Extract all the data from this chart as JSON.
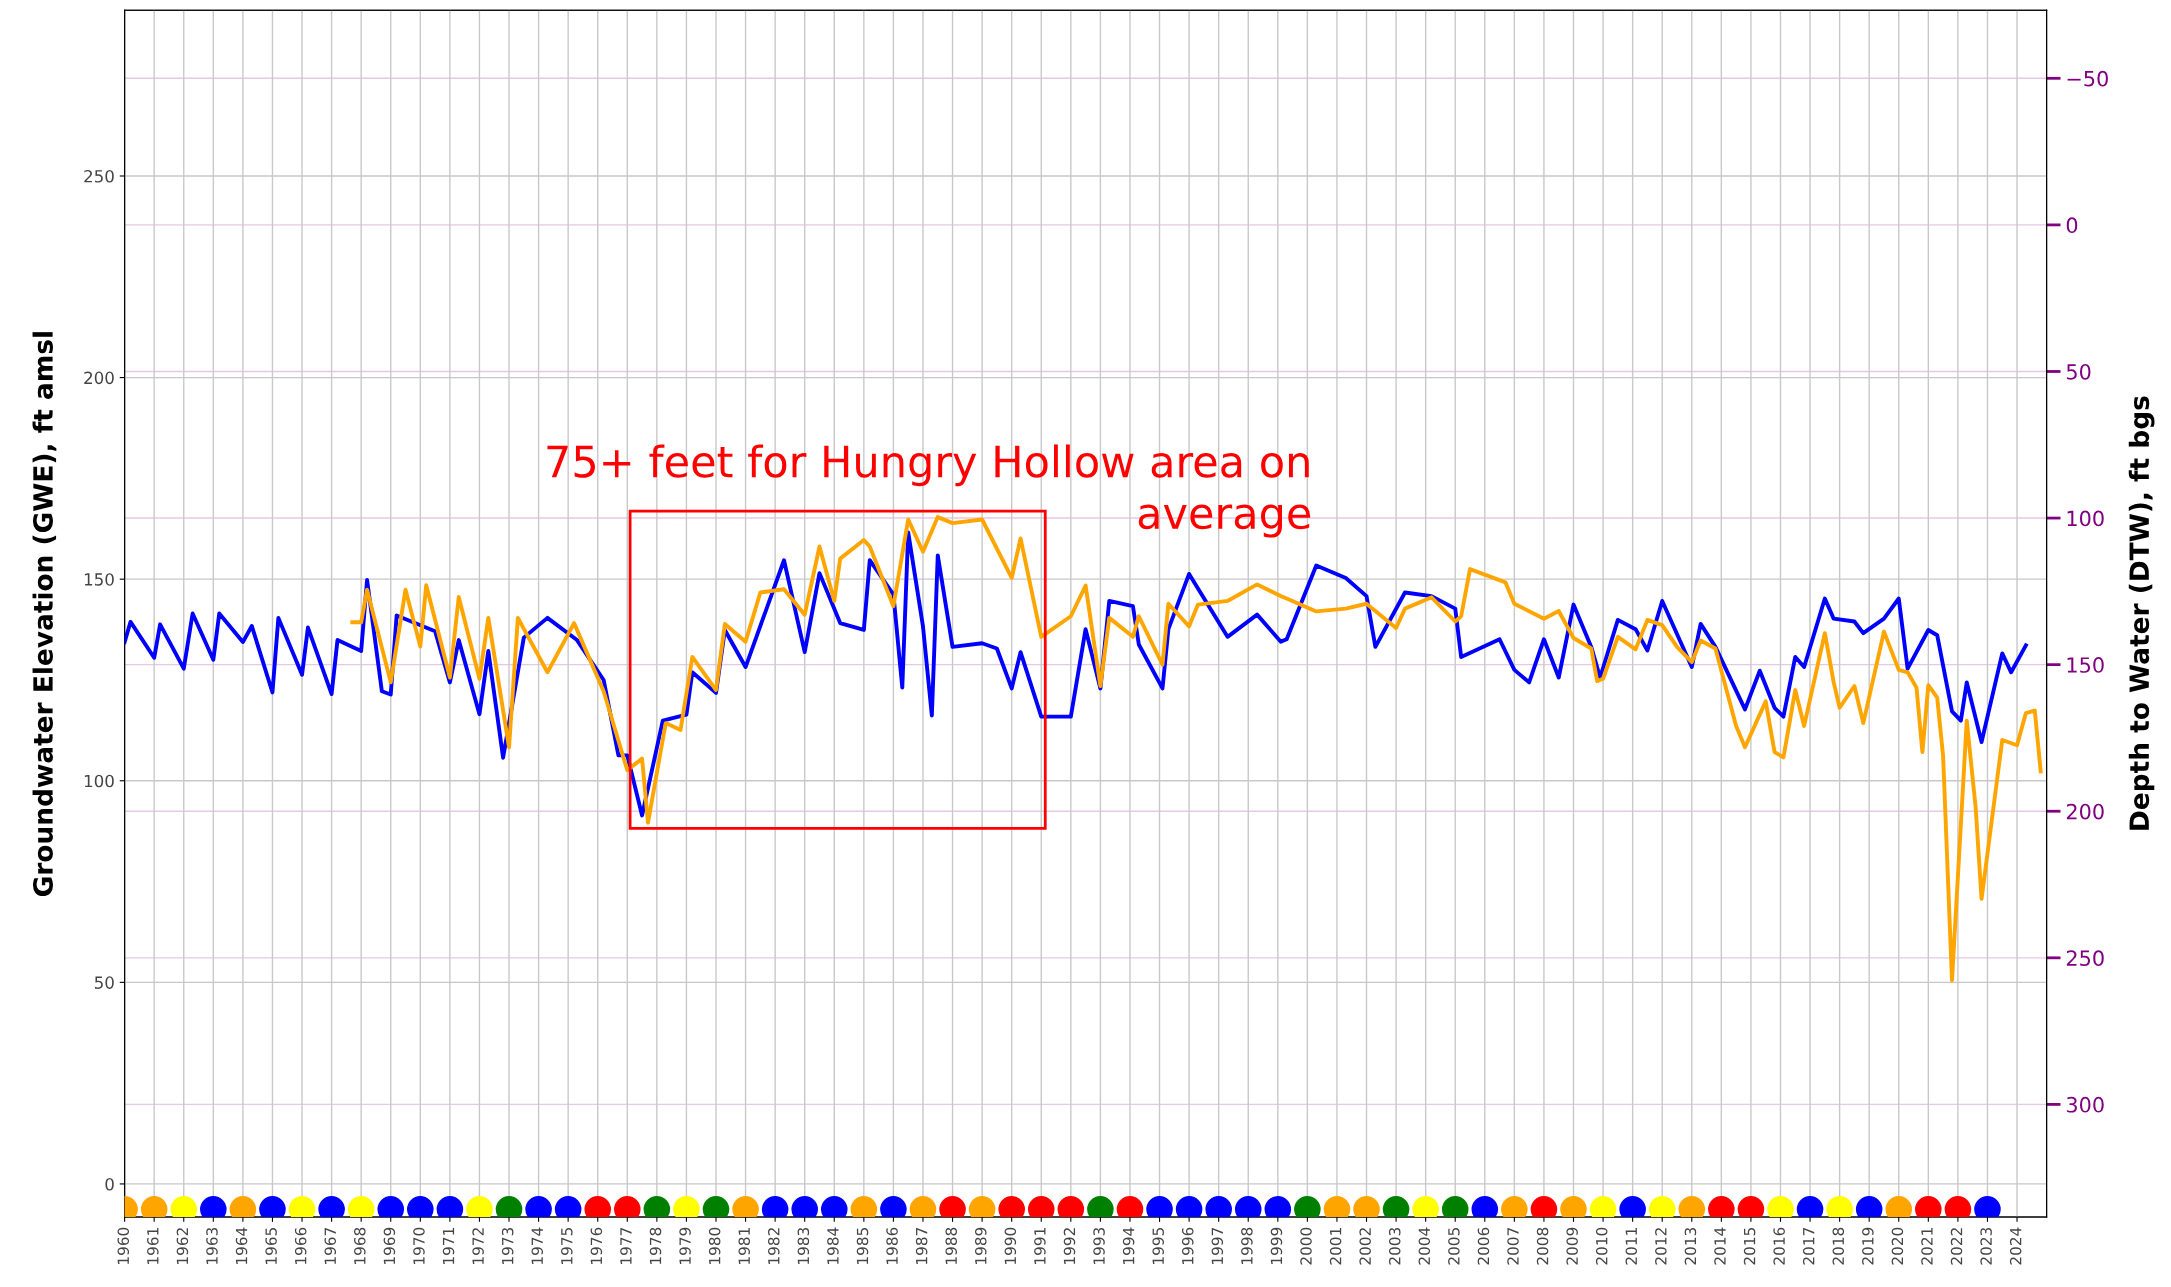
{
  "chart_data": {
    "type": "line",
    "ylabel": "Groundwater Elevation (GWE), ft amsl",
    "y2label": "Depth to Water (DTW), ft bgs",
    "xlim": [
      1960,
      2025
    ],
    "xticks": [
      1960,
      1961,
      1962,
      1963,
      1964,
      1965,
      1966,
      1967,
      1968,
      1969,
      1970,
      1971,
      1972,
      1973,
      1974,
      1975,
      1976,
      1977,
      1978,
      1979,
      1980,
      1981,
      1982,
      1983,
      1984,
      1985,
      1986,
      1987,
      1988,
      1989,
      1990,
      1991,
      1992,
      1993,
      1994,
      1995,
      1996,
      1997,
      1998,
      1999,
      2000,
      2001,
      2002,
      2003,
      2004,
      2005,
      2006,
      2007,
      2008,
      2009,
      2010,
      2011,
      2012,
      2013,
      2014,
      2015,
      2016,
      2017,
      2018,
      2019,
      2020,
      2021,
      2022,
      2023,
      2024
    ],
    "ylim": [
      -8.2,
      291.1
    ],
    "yticks": [
      0,
      50,
      100,
      150,
      200,
      250
    ],
    "y2lim": [
      338.4,
      -73.2
    ],
    "y2ticks": [
      {
        "value": -50,
        "label": "−50"
      },
      0,
      50,
      100,
      150,
      200,
      250,
      300
    ],
    "grid": true,
    "legend": false,
    "line_style": "solid",
    "series": [
      {
        "color": "#0000ff",
        "x": [
          1960.0,
          1960.2,
          1961.0,
          1961.2,
          1962.0,
          1962.3,
          1963.0,
          1963.2,
          1964.0,
          1964.3,
          1965.0,
          1965.2,
          1966.0,
          1966.2,
          1967.0,
          1967.2,
          1968.0,
          1968.2,
          1968.7,
          1969.0,
          1969.2,
          1970.5,
          1971.0,
          1971.3,
          1972.0,
          1972.3,
          1972.8,
          1973.5,
          1974.3,
          1975.3,
          1976.2,
          1976.7,
          1977.0,
          1977.5,
          1978.2,
          1979.0,
          1979.2,
          1980.0,
          1980.3,
          1981.0,
          1982.3,
          1983.0,
          1983.5,
          1984.2,
          1985.0,
          1985.2,
          1986.0,
          1986.3,
          1986.5,
          1987.0,
          1987.3,
          1987.5,
          1988.0,
          1989.0,
          1989.5,
          1990.0,
          1990.3,
          1991.0,
          1992.0,
          1992.5,
          1993.0,
          1993.3,
          1994.1,
          1994.3,
          1995.1,
          1995.3,
          1996.0,
          1997.3,
          1998.3,
          1999.1,
          1999.3,
          2000.3,
          2001.3,
          2002.0,
          2002.3,
          2003.3,
          2004.2,
          2005.0,
          2005.2,
          2006.5,
          2007.0,
          2007.5,
          2008.0,
          2008.5,
          2009.0,
          2009.6,
          2009.9,
          2010.5,
          2011.1,
          2011.5,
          2012.0,
          2012.5,
          2013.0,
          2013.3,
          2013.8,
          2014.8,
          2015.3,
          2015.8,
          2016.1,
          2016.5,
          2016.8,
          2017.5,
          2017.8,
          2018.5,
          2018.8,
          2019.5,
          2020.0,
          2020.3,
          2021.0,
          2021.3,
          2021.8,
          2022.1,
          2022.3,
          2022.8,
          2023.5,
          2023.8,
          2024.3
        ],
        "values": [
          134.4,
          139.4,
          130.5,
          138.8,
          127.8,
          141.5,
          130.0,
          141.5,
          134.4,
          138.4,
          121.9,
          140.4,
          126.3,
          138.0,
          121.5,
          134.9,
          132.2,
          149.8,
          122.2,
          121.4,
          141.0,
          137.1,
          124.4,
          134.9,
          116.5,
          132.2,
          105.7,
          135.5,
          140.4,
          134.9,
          125.0,
          106.3,
          106.3,
          91.4,
          114.9,
          116.4,
          126.9,
          121.8,
          137.4,
          128.2,
          154.7,
          131.9,
          151.5,
          139.1,
          137.4,
          154.7,
          146.2,
          123.1,
          161.6,
          138.3,
          116.2,
          155.9,
          133.2,
          134.1,
          132.8,
          122.9,
          131.9,
          115.9,
          115.9,
          137.6,
          122.9,
          144.6,
          143.3,
          133.8,
          122.9,
          137.6,
          151.3,
          135.7,
          141.2,
          134.5,
          135.1,
          153.4,
          150.3,
          145.8,
          133.2,
          146.7,
          145.8,
          142.7,
          130.7,
          135.1,
          127.5,
          124.4,
          135.1,
          125.6,
          143.7,
          133.2,
          125.6,
          139.9,
          137.6,
          132.3,
          144.6,
          136.4,
          128.2,
          138.9,
          133.2,
          117.7,
          127.3,
          118.1,
          115.9,
          130.7,
          128.2,
          145.2,
          140.2,
          139.5,
          136.6,
          140.2,
          145.2,
          127.8,
          137.4,
          136.1,
          117.2,
          114.9,
          124.4,
          109.6,
          131.6,
          126.9,
          133.6
        ]
      },
      {
        "color": "#ffa500",
        "x": [
          1967.7,
          1968.0,
          1968.2,
          1969.0,
          1969.5,
          1970.0,
          1970.2,
          1971.0,
          1971.3,
          1972.0,
          1972.3,
          1973.0,
          1973.3,
          1974.3,
          1975.2,
          1976.2,
          1977.0,
          1977.5,
          1977.7,
          1978.3,
          1978.8,
          1979.2,
          1980.0,
          1980.3,
          1981.0,
          1981.5,
          1982.3,
          1983.0,
          1983.5,
          1984.0,
          1984.2,
          1985.0,
          1985.2,
          1986.0,
          1986.5,
          1987.0,
          1987.5,
          1988.0,
          1989.0,
          1990.0,
          1990.3,
          1991.0,
          1992.0,
          1992.5,
          1993.0,
          1993.3,
          1994.1,
          1994.3,
          1995.1,
          1995.3,
          1996.0,
          1996.3,
          1997.3,
          1998.3,
          1999.1,
          1999.3,
          2000.3,
          2001.3,
          2002.0,
          2003.0,
          2003.3,
          2004.2,
          2005.0,
          2005.2,
          2005.5,
          2006.7,
          2007.0,
          2008.0,
          2008.5,
          2009.0,
          2009.6,
          2009.8,
          2010.0,
          2010.5,
          2011.1,
          2011.5,
          2012.0,
          2012.5,
          2013.0,
          2013.3,
          2013.8,
          2014.5,
          2014.8,
          2015.5,
          2015.8,
          2016.1,
          2016.5,
          2016.8,
          2017.5,
          2017.8,
          2018.0,
          2018.5,
          2018.8,
          2019.5,
          2020.0,
          2020.3,
          2020.6,
          2020.8,
          2021.0,
          2021.3,
          2021.5,
          2021.8,
          2022.3,
          2022.6,
          2022.8,
          2023.5,
          2024.0,
          2024.3,
          2024.6,
          2024.8
        ],
        "values": [
          139.3,
          139.3,
          147.4,
          124.4,
          147.4,
          133.3,
          148.5,
          125.6,
          145.6,
          125.3,
          140.4,
          108.3,
          140.4,
          126.9,
          139.1,
          122.2,
          102.6,
          105.5,
          89.6,
          114.3,
          112.6,
          130.7,
          122.5,
          138.9,
          134.5,
          146.7,
          147.5,
          141.2,
          158.1,
          144.6,
          155.1,
          159.7,
          158.1,
          143.3,
          164.8,
          156.8,
          165.4,
          163.9,
          164.8,
          150.3,
          160.1,
          135.7,
          140.8,
          148.4,
          123.5,
          140.4,
          135.7,
          140.8,
          128.8,
          143.9,
          138.3,
          143.7,
          144.6,
          148.7,
          145.8,
          145.2,
          142.0,
          142.7,
          143.9,
          137.9,
          142.7,
          145.5,
          139.5,
          140.8,
          152.5,
          149.2,
          143.9,
          140.2,
          142.1,
          135.4,
          132.8,
          124.7,
          125.3,
          135.7,
          132.6,
          139.9,
          138.6,
          133.2,
          129.4,
          134.8,
          132.8,
          113.6,
          108.3,
          119.7,
          107.1,
          105.8,
          122.5,
          113.6,
          136.6,
          124.4,
          118.1,
          123.5,
          114.3,
          137.0,
          127.5,
          126.9,
          123.1,
          107.1,
          123.7,
          120.6,
          106.1,
          50.5,
          114.9,
          93.4,
          70.7,
          110.1,
          108.8,
          116.8,
          117.4,
          102.3
        ]
      },
      {
        "type": "scatter",
        "marker": "circle",
        "x": [
          1960,
          1961,
          1962,
          1963,
          1964,
          1965,
          1966,
          1967,
          1968,
          1969,
          1970,
          1971,
          1972,
          1973,
          1974,
          1975,
          1976,
          1977,
          1978,
          1979,
          1980,
          1981,
          1982,
          1983,
          1984,
          1985,
          1986,
          1987,
          1988,
          1989,
          1990,
          1991,
          1992,
          1993,
          1994,
          1995,
          1996,
          1997,
          1998,
          1999,
          2000,
          2001,
          2002,
          2003,
          2004,
          2005,
          2006,
          2007,
          2008,
          2009,
          2010,
          2011,
          2012,
          2013,
          2014,
          2015,
          2016,
          2017,
          2018,
          2019,
          2020,
          2021,
          2022,
          2023
        ],
        "values": [
          -6.3,
          -6.3,
          -6.3,
          -6.3,
          -6.3,
          -6.3,
          -6.3,
          -6.3,
          -6.3,
          -6.3,
          -6.3,
          -6.3,
          -6.3,
          -6.3,
          -6.3,
          -6.3,
          -6.3,
          -6.3,
          -6.3,
          -6.3,
          -6.3,
          -6.3,
          -6.3,
          -6.3,
          -6.3,
          -6.3,
          -6.3,
          -6.3,
          -6.3,
          -6.3,
          -6.3,
          -6.3,
          -6.3,
          -6.3,
          -6.3,
          -6.3,
          -6.3,
          -6.3,
          -6.3,
          -6.3,
          -6.3,
          -6.3,
          -6.3,
          -6.3,
          -6.3,
          -6.3,
          -6.3,
          -6.3,
          -6.3,
          -6.3,
          -6.3,
          -6.3,
          -6.3,
          -6.3,
          -6.3,
          -6.3,
          -6.3,
          -6.3,
          -6.3,
          -6.3,
          -6.3,
          -6.3,
          -6.3,
          -6.3
        ],
        "colors": [
          "#ffa500",
          "#ffa500",
          "#ffff00",
          "#0000ff",
          "#ffa500",
          "#0000ff",
          "#ffff00",
          "#0000ff",
          "#ffff00",
          "#0000ff",
          "#0000ff",
          "#0000ff",
          "#ffff00",
          "#008000",
          "#0000ff",
          "#0000ff",
          "#ff0000",
          "#ff0000",
          "#008000",
          "#ffff00",
          "#008000",
          "#ffa500",
          "#0000ff",
          "#0000ff",
          "#0000ff",
          "#ffa500",
          "#0000ff",
          "#ffa500",
          "#ff0000",
          "#ffa500",
          "#ff0000",
          "#ff0000",
          "#ff0000",
          "#008000",
          "#ff0000",
          "#0000ff",
          "#0000ff",
          "#0000ff",
          "#0000ff",
          "#0000ff",
          "#008000",
          "#ffa500",
          "#ffa500",
          "#008000",
          "#ffff00",
          "#008000",
          "#0000ff",
          "#ffa500",
          "#ff0000",
          "#ffa500",
          "#ffff00",
          "#0000ff",
          "#ffff00",
          "#ffa500",
          "#ff0000",
          "#ff0000",
          "#ffff00",
          "#0000ff",
          "#ffff00",
          "#0000ff",
          "#ffa500",
          "#ff0000",
          "#ff0000",
          "#0000ff"
        ]
      }
    ],
    "annotations": [
      "75+ feet for Hungry Hollow area on average"
    ]
  }
}
